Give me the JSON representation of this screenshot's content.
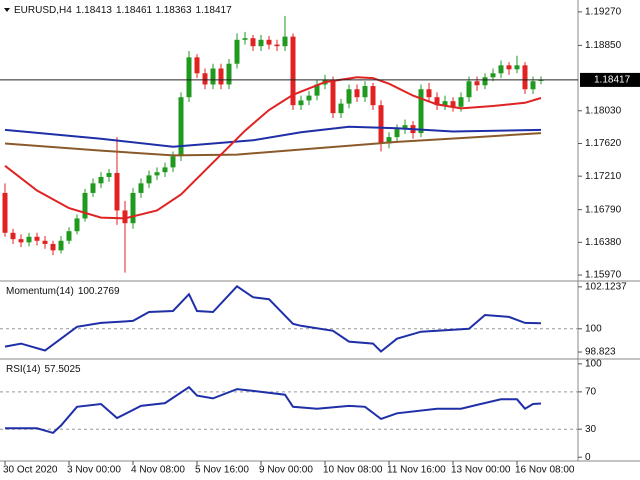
{
  "chart_data": [
    {
      "type": "candlestick",
      "title": "EURUSD,H4",
      "xlim": [
        -0.625,
        71.625
      ],
      "ylim": [
        1.15908,
        1.19394
      ],
      "yticks": [
        {
          "value": 1.1927,
          "label": "1.19270"
        },
        {
          "value": 1.1885,
          "label": "1.18850"
        },
        {
          "value": 1.1803,
          "label": "1.18030"
        },
        {
          "value": 1.1762,
          "label": "1.17620"
        },
        {
          "value": 1.1721,
          "label": "1.17210"
        },
        {
          "value": 1.1679,
          "label": "1.16790"
        },
        {
          "value": 1.1638,
          "label": "1.16380"
        },
        {
          "value": 1.1597,
          "label": "1.15970"
        }
      ],
      "up_color": "#1f9a1f",
      "down_color": "#e02222",
      "open": [
        1.17,
        1.165,
        1.1642,
        1.1638,
        1.1645,
        1.164,
        1.1636,
        1.1628,
        1.164,
        1.1652,
        1.1668,
        1.17,
        1.1712,
        1.172,
        1.1725,
        1.1678,
        1.1662,
        1.17,
        1.1712,
        1.1722,
        1.1726,
        1.1732,
        1.1746,
        1.182,
        1.187,
        1.185,
        1.1836,
        1.1856,
        1.1836,
        1.1862,
        1.1892,
        1.1894,
        1.1884,
        1.1892,
        1.1886,
        1.1884,
        1.1896,
        1.181,
        1.1816,
        1.1822,
        1.1836,
        1.1842,
        1.18,
        1.1812,
        1.183,
        1.182,
        1.1834,
        1.181,
        1.1762,
        1.177,
        1.178,
        1.1785,
        1.1775,
        1.183,
        1.182,
        1.181,
        1.1815,
        1.1808,
        1.182,
        1.184,
        1.1835,
        1.1845,
        1.185,
        1.186,
        1.1855,
        1.186,
        1.183,
        1.18413
      ],
      "high": [
        1.1712,
        1.1655,
        1.1648,
        1.165,
        1.165,
        1.1646,
        1.164,
        1.1646,
        1.1657,
        1.1673,
        1.1705,
        1.1718,
        1.1726,
        1.173,
        1.177,
        1.169,
        1.1706,
        1.1718,
        1.1728,
        1.1732,
        1.1738,
        1.1752,
        1.1826,
        1.1878,
        1.1874,
        1.1856,
        1.1862,
        1.1862,
        1.1868,
        1.19,
        1.1902,
        1.1898,
        1.1898,
        1.1897,
        1.1892,
        1.1922,
        1.19,
        1.1822,
        1.1828,
        1.1842,
        1.1848,
        1.1846,
        1.1818,
        1.1836,
        1.1836,
        1.184,
        1.1838,
        1.1816,
        1.1776,
        1.1786,
        1.1792,
        1.179,
        1.1836,
        1.1838,
        1.1826,
        1.1822,
        1.182,
        1.1826,
        1.1846,
        1.1846,
        1.185,
        1.1856,
        1.1866,
        1.1864,
        1.1872,
        1.1864,
        1.1846,
        1.18461
      ],
      "low": [
        1.1645,
        1.1636,
        1.1632,
        1.1633,
        1.1634,
        1.163,
        1.1622,
        1.1624,
        1.1636,
        1.1648,
        1.1664,
        1.1695,
        1.1706,
        1.1714,
        1.166,
        1.16,
        1.1655,
        1.1694,
        1.1706,
        1.1716,
        1.172,
        1.1726,
        1.174,
        1.1814,
        1.1844,
        1.183,
        1.183,
        1.183,
        1.183,
        1.1856,
        1.1886,
        1.1878,
        1.1878,
        1.188,
        1.1878,
        1.1878,
        1.1804,
        1.1804,
        1.181,
        1.1816,
        1.183,
        1.1794,
        1.1794,
        1.1806,
        1.1814,
        1.1814,
        1.1804,
        1.1752,
        1.1756,
        1.1764,
        1.1774,
        1.1768,
        1.177,
        1.1814,
        1.1804,
        1.1804,
        1.1802,
        1.1802,
        1.1814,
        1.1828,
        1.183,
        1.184,
        1.1844,
        1.1848,
        1.185,
        1.1824,
        1.1824,
        1.18363
      ],
      "close": [
        1.165,
        1.1642,
        1.1638,
        1.1645,
        1.164,
        1.1636,
        1.1628,
        1.164,
        1.1652,
        1.1668,
        1.17,
        1.1712,
        1.172,
        1.1725,
        1.1678,
        1.1662,
        1.17,
        1.1712,
        1.1722,
        1.1726,
        1.1732,
        1.1746,
        1.182,
        1.187,
        1.185,
        1.1836,
        1.1856,
        1.1836,
        1.1862,
        1.1892,
        1.1894,
        1.1884,
        1.1892,
        1.1886,
        1.1884,
        1.1896,
        1.181,
        1.1816,
        1.1822,
        1.1836,
        1.1842,
        1.18,
        1.1812,
        1.183,
        1.182,
        1.1834,
        1.181,
        1.1762,
        1.177,
        1.178,
        1.1785,
        1.1775,
        1.183,
        1.182,
        1.181,
        1.1815,
        1.1808,
        1.182,
        1.184,
        1.1835,
        1.1845,
        1.185,
        1.186,
        1.1855,
        1.186,
        1.183,
        1.184,
        1.18417
      ],
      "current_price": 1.18417,
      "series": [
        {
          "color": "#8b5a2b",
          "x": [
            0,
            12,
            21,
            29,
            39,
            49,
            59,
            67
          ],
          "values": [
            1.1762,
            1.1753,
            1.1747,
            1.1748,
            1.1756,
            1.1764,
            1.177,
            1.1775
          ]
        },
        {
          "color": "#1f2fa8",
          "x": [
            0,
            12,
            21,
            31,
            37,
            43,
            49,
            56,
            67
          ],
          "values": [
            1.1779,
            1.1768,
            1.1758,
            1.1766,
            1.1776,
            1.1783,
            1.1781,
            1.1777,
            1.1779
          ]
        },
        {
          "color": "#e02222",
          "x": [
            0,
            4,
            8,
            12,
            15,
            19,
            22,
            26,
            30,
            33,
            36,
            40,
            44,
            46,
            48,
            51,
            54,
            57,
            61,
            65,
            67
          ],
          "values": [
            1.1734,
            1.1703,
            1.1681,
            1.1669,
            1.1668,
            1.1678,
            1.1698,
            1.1738,
            1.1778,
            1.1804,
            1.1823,
            1.1839,
            1.1845,
            1.1844,
            1.1837,
            1.1822,
            1.1811,
            1.1806,
            1.1809,
            1.1813,
            1.1819
          ]
        }
      ]
    },
    {
      "type": "line",
      "title": "Momentum(14)",
      "ylim": [
        98.52,
        102.37
      ],
      "yticks": [
        102.1237,
        100,
        98.823
      ],
      "levels": [
        100
      ],
      "lines": [
        {
          "color": "#1f2fa8",
          "x": [
            0,
            2,
            5,
            7,
            9,
            12,
            16,
            18,
            21,
            23,
            24,
            26,
            29,
            31,
            33,
            36,
            37,
            41,
            43,
            46,
            47,
            49,
            52,
            54,
            58,
            60,
            63,
            65,
            67
          ],
          "values": [
            99.1,
            99.25,
            98.9,
            99.5,
            100.1,
            100.3,
            100.4,
            100.85,
            100.9,
            101.75,
            100.9,
            100.85,
            102.15,
            101.6,
            101.5,
            100.25,
            100.15,
            99.9,
            99.35,
            99.25,
            98.85,
            99.5,
            99.85,
            99.9,
            100.0,
            100.7,
            100.6,
            100.3,
            100.2769
          ]
        }
      ]
    },
    {
      "type": "line",
      "title": "RSI(14)",
      "ylim": [
        -3,
        102
      ],
      "yticks": [
        100,
        70,
        30,
        0
      ],
      "levels": [
        70,
        30
      ],
      "lines": [
        {
          "color": "#1f2fa8",
          "x": [
            0,
            4,
            6,
            7,
            9,
            12,
            14,
            17,
            20,
            23,
            24,
            26,
            29,
            31,
            35,
            36,
            39,
            43,
            45,
            47,
            49,
            54,
            57,
            59,
            62,
            64,
            65,
            66,
            67
          ],
          "values": [
            31,
            31,
            26,
            34,
            54,
            57,
            42,
            55,
            58,
            75,
            66,
            63,
            73,
            71,
            67,
            54,
            52,
            55,
            54,
            41,
            47,
            52,
            52,
            56,
            62,
            62,
            52,
            57,
            57.5025
          ]
        }
      ],
      "xticks": [
        {
          "value": 0,
          "label": "30 Oct 2020"
        },
        {
          "value": 8,
          "label": "3 Nov 00:00"
        },
        {
          "value": 16,
          "label": "4 Nov 08:00"
        },
        {
          "value": 24,
          "label": "5 Nov 16:00"
        },
        {
          "value": 32,
          "label": "9 Nov 00:00"
        },
        {
          "value": 40,
          "label": "10 Nov 08:00"
        },
        {
          "value": 48,
          "label": "11 Nov 16:00"
        },
        {
          "value": 56,
          "label": "13 Nov 00:00"
        },
        {
          "value": 64,
          "label": "16 Nov 08:00"
        }
      ]
    }
  ]
}
